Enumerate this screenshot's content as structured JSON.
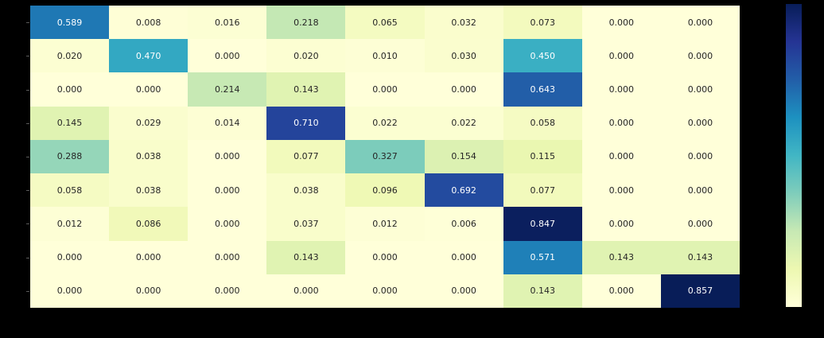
{
  "figure": {
    "background_color": "#000000"
  },
  "chart_data": {
    "type": "heatmap",
    "title": "",
    "xlabel": "",
    "ylabel": "",
    "rows": 9,
    "cols": 9,
    "values": [
      [
        0.589,
        0.008,
        0.016,
        0.218,
        0.065,
        0.032,
        0.073,
        0.0,
        0.0
      ],
      [
        0.02,
        0.47,
        0.0,
        0.02,
        0.01,
        0.03,
        0.45,
        0.0,
        0.0
      ],
      [
        0.0,
        0.0,
        0.214,
        0.143,
        0.0,
        0.0,
        0.643,
        0.0,
        0.0
      ],
      [
        0.145,
        0.029,
        0.014,
        0.71,
        0.022,
        0.022,
        0.058,
        0.0,
        0.0
      ],
      [
        0.288,
        0.038,
        0.0,
        0.077,
        0.327,
        0.154,
        0.115,
        0.0,
        0.0
      ],
      [
        0.058,
        0.038,
        0.0,
        0.038,
        0.096,
        0.692,
        0.077,
        0.0,
        0.0
      ],
      [
        0.012,
        0.086,
        0.0,
        0.037,
        0.012,
        0.006,
        0.847,
        0.0,
        0.0
      ],
      [
        0.0,
        0.0,
        0.0,
        0.143,
        0.0,
        0.0,
        0.571,
        0.143,
        0.143
      ],
      [
        0.0,
        0.0,
        0.0,
        0.0,
        0.0,
        0.0,
        0.143,
        0.0,
        0.857
      ]
    ],
    "annotation_decimals": 3,
    "vmin": 0.0,
    "vmax": 0.857,
    "colormap": "YlGnBu",
    "colormap_stops": [
      "#ffffd9",
      "#edf8b1",
      "#c7e9b4",
      "#7fcdbb",
      "#41b6c4",
      "#1d91c0",
      "#225ea8",
      "#253494",
      "#081d58"
    ],
    "annotation_color_light_cells": "#262626",
    "annotation_color_dark_cells": "#ffffff",
    "luminance_threshold": 0.408,
    "grid": false,
    "axis_tick_labels_visible": false,
    "tick_color": "#5a5a5a",
    "legend_position": "right-colorbar",
    "colorbar_top_value": 0.857,
    "colorbar_bottom_value": 0.0
  }
}
